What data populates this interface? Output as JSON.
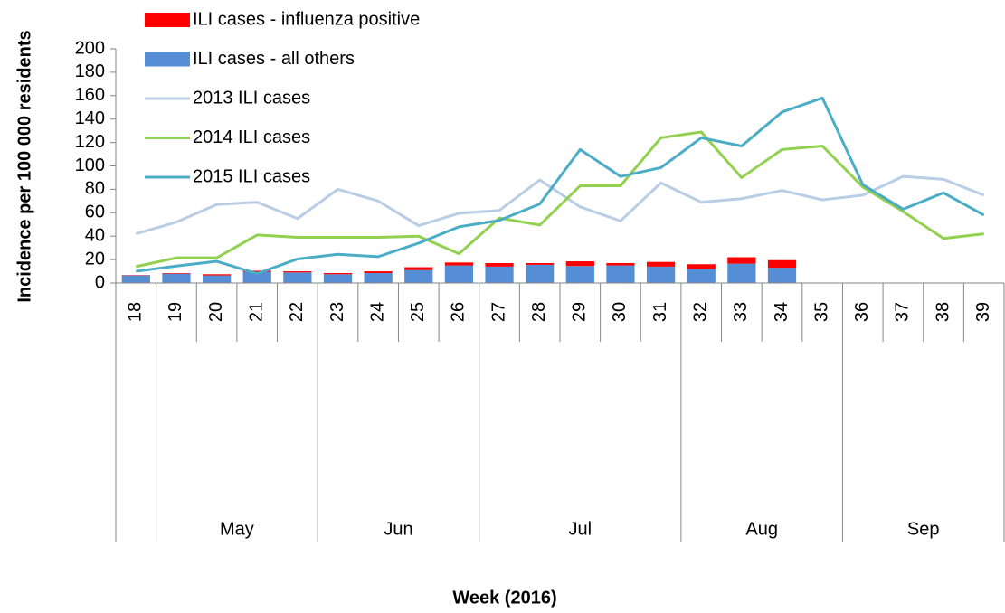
{
  "chart_data": {
    "type": "bar",
    "categories": [
      "18",
      "19",
      "20",
      "21",
      "22",
      "23",
      "24",
      "25",
      "26",
      "27",
      "28",
      "29",
      "30",
      "31",
      "32",
      "33",
      "34",
      "35",
      "36",
      "37",
      "38",
      "39"
    ],
    "months": [
      null,
      "May",
      "May",
      "May",
      "May",
      "Jun",
      "Jun",
      "Jun",
      "Jun",
      "Jul",
      "Jul",
      "Jul",
      "Jul",
      "Jul",
      "Aug",
      "Aug",
      "Aug",
      "Aug",
      "Sep",
      "Sep",
      "Sep",
      "Sep"
    ],
    "x_label": "Week (2016)",
    "y_label": "Incidence per 100 000 residents",
    "ylim": [
      0,
      200
    ],
    "yticks": [
      0,
      20,
      40,
      60,
      80,
      100,
      120,
      140,
      160,
      180,
      200
    ],
    "legend": "upper left",
    "series": [
      {
        "name": "ILI cases - influenza positive",
        "type": "bar",
        "color": "#ff0000",
        "values": [
          0.3,
          0.5,
          1,
          1,
          1,
          1,
          1.5,
          2.5,
          2.5,
          3,
          1.5,
          4,
          2,
          4,
          4,
          5.5,
          6.5,
          null,
          null,
          null,
          null,
          null
        ]
      },
      {
        "name": "ILI cases - all others",
        "type": "bar",
        "color": "#558ed5",
        "values": [
          6.5,
          8,
          6.5,
          9.5,
          9,
          7.5,
          8.5,
          11,
          15,
          14,
          15.5,
          14.5,
          15,
          14,
          12,
          16.5,
          13,
          null,
          null,
          null,
          null,
          null
        ]
      },
      {
        "name": "2013 ILI cases",
        "type": "line",
        "color": "#b9cde5",
        "values": [
          42,
          52,
          67,
          69,
          55,
          80,
          70,
          49,
          59.5,
          62,
          88,
          65,
          53,
          85.5,
          69,
          72,
          79,
          71,
          75,
          91,
          88.5,
          75
        ]
      },
      {
        "name": "2014 ILI cases",
        "type": "line",
        "color": "#92d050",
        "values": [
          14,
          21.5,
          21.5,
          41,
          39,
          39,
          39,
          40,
          25,
          55.5,
          49.5,
          83,
          83,
          124,
          129,
          90,
          114,
          117,
          82,
          61,
          38,
          42
        ]
      },
      {
        "name": "2015 ILI cases",
        "type": "line",
        "color": "#4bacc6",
        "values": [
          10,
          14.5,
          18.5,
          8,
          20.5,
          24.5,
          22.5,
          34,
          48,
          53.5,
          67.5,
          114,
          91,
          98.5,
          124,
          117,
          146,
          158,
          84,
          63,
          77,
          58
        ]
      }
    ]
  }
}
